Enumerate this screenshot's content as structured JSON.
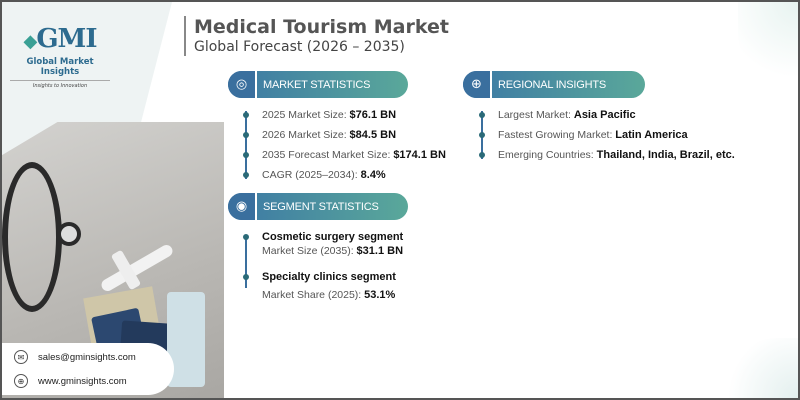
{
  "logo": {
    "mark": "GMI",
    "name": "Global Market Insights",
    "tagline": "Insights to Innovation"
  },
  "header": {
    "title": "Medical Tourism Market",
    "subtitle": "Global Forecast (2026 – 2035)"
  },
  "market_statistics": {
    "heading": "MARKET STATISTICS",
    "icon": "globe-chart-icon",
    "items": [
      {
        "label": "2025 Market Size: ",
        "value": "$76.1 BN"
      },
      {
        "label": "2026 Market Size: ",
        "value": "$84.5 BN"
      },
      {
        "label": "2035 Forecast Market Size: ",
        "value": "$174.1 BN"
      },
      {
        "label": "CAGR (2025–2034): ",
        "value": "8.4%"
      }
    ]
  },
  "regional_insights": {
    "heading": "REGIONAL INSIGHTS",
    "icon": "globe-icon",
    "items": [
      {
        "label": "Largest Market: ",
        "value": "Asia Pacific"
      },
      {
        "label": "Fastest Growing Market: ",
        "value": "Latin America"
      },
      {
        "label": "Emerging Countries: ",
        "value": "Thailand, India, Brazil, etc."
      }
    ]
  },
  "segment_statistics": {
    "heading": "SEGMENT STATISTICS",
    "icon": "target-chart-icon",
    "items": [
      {
        "title": "Cosmetic surgery segment",
        "label": "Market Size (2035): ",
        "value": "$31.1 BN"
      },
      {
        "title": "Specialty clinics segment",
        "label": "Market Share (2025): ",
        "value": "53.1%"
      }
    ]
  },
  "contact": {
    "email": "sales@gminsights.com",
    "website": "www.gminsights.com"
  },
  "colors": {
    "pill_start": "#3c78a5",
    "pill_end": "#5aa89a",
    "bullet": "#2b6a78"
  }
}
